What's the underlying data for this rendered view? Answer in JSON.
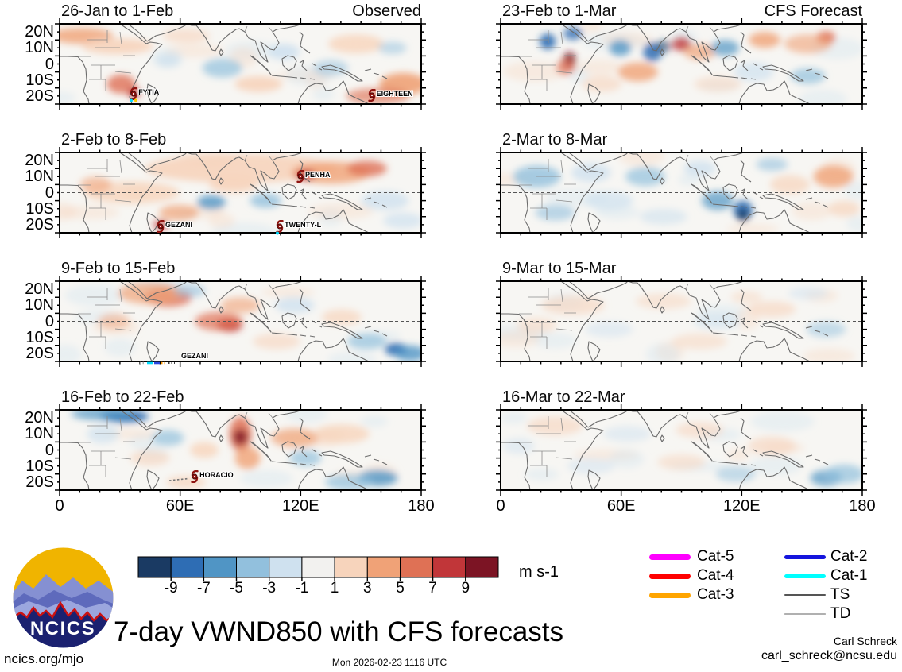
{
  "figure": {
    "axes": {
      "lat_labels": [
        "20N",
        "10N",
        "0",
        "10S",
        "20S"
      ],
      "lon_labels": [
        "0",
        "60E",
        "120E",
        "180"
      ]
    }
  },
  "panels": [
    {
      "col": "left",
      "row": 0,
      "title": "26-Jan to 1-Feb",
      "corner": "Observed",
      "storms": [
        {
          "name": "FYTIA",
          "fx": 0.205,
          "fy": 0.87,
          "type": "symbol",
          "dots": [
            "#00dcff",
            "#ffcc00"
          ]
        },
        {
          "name": "EIGHTEEN",
          "fx": 0.863,
          "fy": 0.89,
          "type": "symbol"
        }
      ]
    },
    {
      "col": "left",
      "row": 1,
      "title": "2-Feb to 8-Feb",
      "corner": "",
      "storms": [
        {
          "name": "PENHA",
          "fx": 0.666,
          "fy": 0.3,
          "type": "symbol"
        },
        {
          "name": "GEZANI",
          "fx": 0.279,
          "fy": 0.92,
          "type": "symbol"
        },
        {
          "name": "TWENTY-L",
          "fx": 0.609,
          "fy": 0.92,
          "type": "symbol",
          "dots": [
            "#00dcff"
          ]
        }
      ]
    },
    {
      "col": "left",
      "row": 2,
      "title": "9-Feb to 15-Feb",
      "corner": "",
      "storms": [
        {
          "name": "GEZANI",
          "fx": 0.323,
          "fy": 0.95,
          "type": "track"
        }
      ]
    },
    {
      "col": "left",
      "row": 3,
      "title": "16-Feb to 22-Feb",
      "corner": "",
      "storms": [
        {
          "name": "HORACIO",
          "fx": 0.374,
          "fy": 0.83,
          "type": "symbol",
          "trail": true
        }
      ]
    },
    {
      "col": "right",
      "row": 0,
      "title": "23-Feb to 1-Mar",
      "corner": "CFS Forecast",
      "storms": []
    },
    {
      "col": "right",
      "row": 1,
      "title": "2-Mar to 8-Mar",
      "corner": "",
      "storms": []
    },
    {
      "col": "right",
      "row": 2,
      "title": "9-Mar to 15-Mar",
      "corner": "",
      "storms": []
    },
    {
      "col": "right",
      "row": 3,
      "title": "16-Mar to 22-Mar",
      "corner": "",
      "storms": []
    }
  ],
  "colorbar": {
    "units": "m s-1",
    "tick_labels": [
      "-9",
      "-7",
      "-5",
      "-3",
      "-1",
      "1",
      "3",
      "5",
      "7",
      "9"
    ],
    "colors": [
      "#1a3a63",
      "#2e6db4",
      "#5095c5",
      "#92c0dd",
      "#cfe1ef",
      "#f2f1ef",
      "#f7d4bc",
      "#f0a277",
      "#df7155",
      "#c13639",
      "#7c1424"
    ]
  },
  "legend": {
    "items": [
      {
        "label": "Cat-5",
        "color": "#ff00ff",
        "weight": 7,
        "column": 0
      },
      {
        "label": "Cat-4",
        "color": "#ff0000",
        "weight": 7,
        "column": 0
      },
      {
        "label": "Cat-3",
        "color": "#ffa500",
        "weight": 7,
        "column": 0
      },
      {
        "label": "Cat-2",
        "color": "#1515dd",
        "weight": 5,
        "column": 1
      },
      {
        "label": "Cat-1",
        "color": "#00ffff",
        "weight": 5,
        "column": 1
      },
      {
        "label": "TS",
        "color": "#555555",
        "weight": 2.5,
        "column": 1
      },
      {
        "label": "TD",
        "color": "#b0b0b0",
        "weight": 1.5,
        "column": 1
      }
    ]
  },
  "footer": {
    "main_title": "7-day VWND850 with CFS forecasts",
    "site": "ncics.org/mjo",
    "timestamp": "Mon 2026-02-23 1116 UTC",
    "credit_name": "Carl Schreck",
    "credit_email": "carl_schreck@ncsu.edu"
  },
  "logo": {
    "label": "NCICS"
  },
  "chart_data": {
    "type": "heatmap",
    "subtype": "filled-contour map grid, 4 rows x 2 columns (weekly maps)",
    "variable": "VWND850 (850-hPa meridional wind anomaly)",
    "units": "m s-1",
    "contour_levels": [
      -9,
      -7,
      -5,
      -3,
      -1,
      1,
      3,
      5,
      7,
      9
    ],
    "lon_range_deg_east": [
      0,
      180
    ],
    "lat_range_deg": [
      -25,
      25
    ],
    "lat_ticks": [
      "20N",
      "10N",
      "0",
      "10S",
      "20S"
    ],
    "lon_ticks": [
      "0",
      "60E",
      "120E",
      "180"
    ],
    "column_headers": [
      "Observed",
      "CFS Forecast"
    ],
    "panels": [
      {
        "title": "26-Jan to 1-Feb",
        "column": "Observed",
        "storm_labels": [
          "FYTIA",
          "EIGHTEEN"
        ]
      },
      {
        "title": "2-Feb to 8-Feb",
        "column": "Observed",
        "storm_labels": [
          "PENHA",
          "GEZANI",
          "TWENTY-L"
        ]
      },
      {
        "title": "9-Feb to 15-Feb",
        "column": "Observed",
        "storm_labels": [
          "GEZANI"
        ]
      },
      {
        "title": "16-Feb to 22-Feb",
        "column": "Observed",
        "storm_labels": [
          "HORACIO"
        ]
      },
      {
        "title": "23-Feb to 1-Mar",
        "column": "CFS Forecast",
        "storm_labels": []
      },
      {
        "title": "2-Mar to 8-Mar",
        "column": "CFS Forecast",
        "storm_labels": []
      },
      {
        "title": "9-Mar to 15-Mar",
        "column": "CFS Forecast",
        "storm_labels": []
      },
      {
        "title": "16-Mar to 22-Mar",
        "column": "CFS Forecast",
        "storm_labels": []
      }
    ],
    "tc_legend": [
      "Cat-5",
      "Cat-4",
      "Cat-3",
      "Cat-2",
      "Cat-1",
      "TS",
      "TD"
    ],
    "legend_position": "bottom-right",
    "colorbar_position": "bottom-left"
  }
}
